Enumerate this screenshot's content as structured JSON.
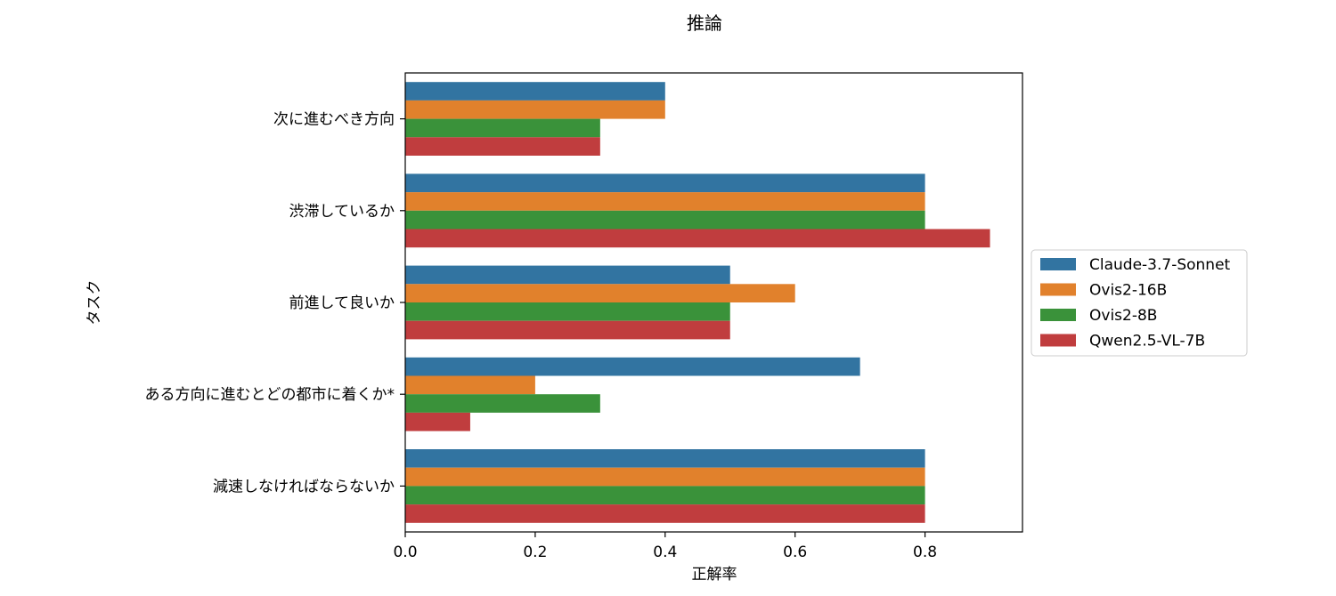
{
  "chart_data": {
    "type": "bar",
    "orientation": "horizontal",
    "title": "推論",
    "xlabel": "正解率",
    "ylabel": "タスク",
    "xlim": [
      0,
      0.95
    ],
    "xticks": [
      "0.0",
      "0.2",
      "0.4",
      "0.6",
      "0.8"
    ],
    "grid": false,
    "legend_position": "center-right-outside",
    "categories": [
      "次に進むべき方向",
      "渋滞しているか",
      "前進して良いか",
      "ある方向に進むとどの都市に着くか*",
      "減速しなければならないか"
    ],
    "series": [
      {
        "name": "Claude-3.7-Sonnet",
        "color": "#3274a1",
        "values": [
          0.4,
          0.8,
          0.5,
          0.7,
          0.8
        ]
      },
      {
        "name": "Ovis2-16B",
        "color": "#e1812c",
        "values": [
          0.4,
          0.8,
          0.6,
          0.2,
          0.8
        ]
      },
      {
        "name": "Ovis2-8B",
        "color": "#3a923a",
        "values": [
          0.3,
          0.8,
          0.5,
          0.3,
          0.8
        ]
      },
      {
        "name": "Qwen2.5-VL-7B",
        "color": "#c03d3e",
        "values": [
          0.3,
          0.9,
          0.5,
          0.1,
          0.8
        ]
      }
    ]
  }
}
